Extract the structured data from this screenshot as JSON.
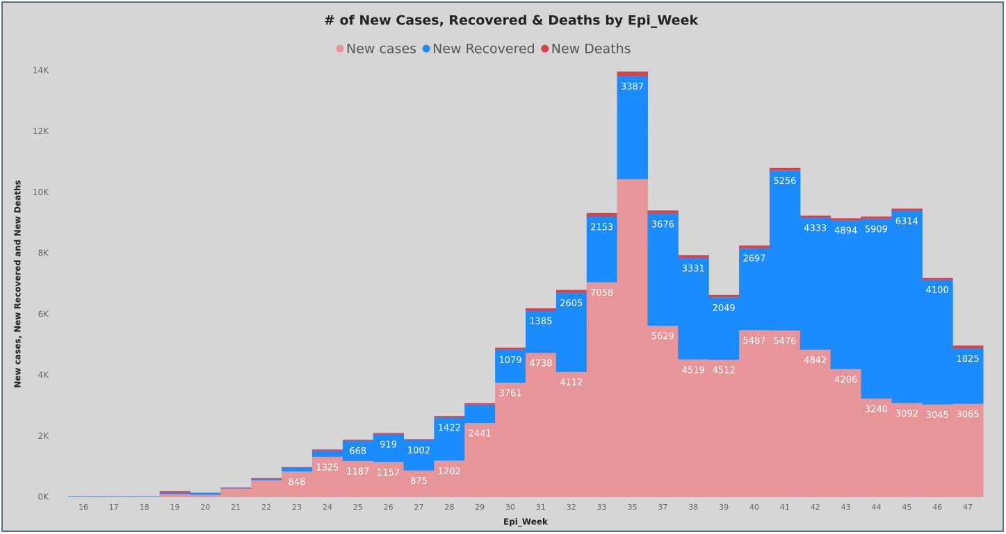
{
  "chart_data": {
    "type": "stacked-bar",
    "title": "# of New Cases, Recovered & Deaths by Epi_Week",
    "x_label": "Epi_Week",
    "y_label": "New cases, New Recovered and New Deaths",
    "categories": [
      "16",
      "17",
      "18",
      "19",
      "20",
      "21",
      "22",
      "23",
      "24",
      "25",
      "26",
      "27",
      "28",
      "29",
      "30",
      "31",
      "32",
      "33",
      "35",
      "37",
      "38",
      "39",
      "40",
      "41",
      "42",
      "43",
      "44",
      "45",
      "46",
      "47"
    ],
    "series": [
      {
        "name": "New cases",
        "color": "#e8959a",
        "values": [
          10,
          10,
          10,
          100,
          80,
          280,
          560,
          848,
          1325,
          1187,
          1157,
          875,
          1202,
          2441,
          3761,
          4738,
          4112,
          7058,
          10440,
          5629,
          4519,
          4512,
          5487,
          5476,
          4842,
          4206,
          3240,
          3092,
          3045,
          3065
        ],
        "value_labels": [
          null,
          null,
          null,
          null,
          null,
          null,
          null,
          "848",
          "1325",
          "1187",
          "1157",
          "875",
          "1202",
          "2441",
          "3761",
          "4738",
          "4112",
          "7058",
          null,
          "5629",
          "4519",
          "4512",
          "5487",
          "5476",
          "4842",
          "4206",
          "3240",
          "3092",
          "3045",
          "3065"
        ]
      },
      {
        "name": "New Recovered",
        "color": "#1a8cff",
        "values": [
          20,
          20,
          20,
          50,
          60,
          30,
          40,
          110,
          200,
          668,
          919,
          1002,
          1422,
          600,
          1079,
          1385,
          2605,
          2153,
          3387,
          3676,
          3331,
          2049,
          2697,
          5256,
          4333,
          4894,
          5909,
          6314,
          4100,
          1825
        ],
        "value_labels": [
          null,
          null,
          null,
          null,
          null,
          null,
          null,
          null,
          null,
          "668",
          "919",
          "1002",
          "1422",
          null,
          "1079",
          "1385",
          "2605",
          "2153",
          "3387",
          "3676",
          "3331",
          "2049",
          "2697",
          "5256",
          "4333",
          "4894",
          "5909",
          "6314",
          "4100",
          "1825"
        ]
      },
      {
        "name": "New Deaths",
        "color": "#d9404a",
        "values": [
          0,
          0,
          0,
          50,
          10,
          10,
          30,
          30,
          40,
          30,
          30,
          30,
          40,
          50,
          70,
          80,
          90,
          120,
          150,
          110,
          100,
          80,
          80,
          80,
          70,
          60,
          70,
          70,
          60,
          90
        ]
      }
    ],
    "ylim": [
      0,
      14000
    ],
    "yticks": [
      {
        "value": 0,
        "label": "0K"
      },
      {
        "value": 2000,
        "label": "2K"
      },
      {
        "value": 4000,
        "label": "4K"
      },
      {
        "value": 6000,
        "label": "6K"
      },
      {
        "value": 8000,
        "label": "8K"
      },
      {
        "value": 10000,
        "label": "10K"
      },
      {
        "value": 12000,
        "label": "12K"
      },
      {
        "value": 14000,
        "label": "14K"
      }
    ],
    "grid": true
  }
}
